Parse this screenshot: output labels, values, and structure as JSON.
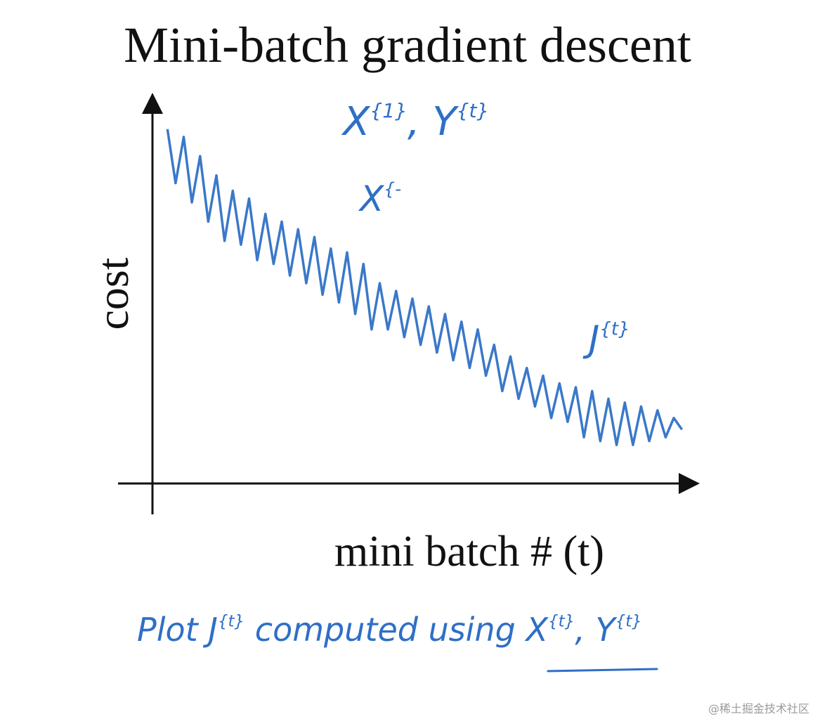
{
  "chart_data": {
    "type": "line",
    "title": "Mini-batch gradient descent",
    "y_label": "cost",
    "x_label": "mini batch # (t)",
    "xlim": [
      0,
      100
    ],
    "ylim": [
      0,
      100
    ],
    "color": "#3a78c9",
    "x": [
      3,
      4.5,
      6,
      7.5,
      9,
      10.5,
      12,
      13.5,
      15,
      16.5,
      18,
      19.5,
      21,
      22.5,
      24,
      25.5,
      27,
      28.5,
      30,
      31.5,
      33,
      34.5,
      36,
      37.5,
      39,
      40.5,
      42,
      43.5,
      45,
      46.5,
      48,
      49.5,
      51,
      52.5,
      54,
      55.5,
      57,
      58.5,
      60,
      61.5,
      63,
      64.5,
      66,
      67.5,
      69,
      70.5,
      72,
      73.5,
      75,
      76.5,
      78,
      79.5,
      81,
      82.5,
      84,
      85.5,
      87,
      88.5,
      90,
      91.5,
      93,
      94.5,
      96,
      97.5
    ],
    "values": [
      92,
      78,
      90,
      73,
      85,
      68,
      80,
      63,
      76,
      62,
      74,
      58,
      70,
      57,
      68,
      54,
      66,
      52,
      64,
      49,
      61,
      47,
      60,
      44,
      57,
      40,
      52,
      40,
      50,
      38,
      48,
      36,
      46,
      34,
      44,
      32,
      42,
      30,
      40,
      28,
      36,
      24,
      33,
      22,
      30,
      20,
      28,
      17,
      26,
      16,
      25,
      12,
      24,
      11,
      22,
      10,
      21,
      10,
      20,
      11,
      19,
      12,
      17,
      14
    ],
    "annotations": [
      {
        "parts": [
          {
            "text": "X"
          },
          {
            "text": "{1}",
            "sup": true
          },
          {
            "text": ", Y"
          },
          {
            "text": "{t}",
            "sup": true
          }
        ]
      },
      {
        "parts": [
          {
            "text": "X"
          },
          {
            "text": "{-",
            "sup": true
          }
        ]
      },
      {
        "parts": [
          {
            "text": "J"
          },
          {
            "text": "{t}",
            "sup": true
          }
        ]
      },
      {
        "parts": [
          {
            "text": "Plot  J"
          },
          {
            "text": "{t}",
            "sup": true
          },
          {
            "text": "  computed using  X"
          },
          {
            "text": "{t}",
            "sup": true
          },
          {
            "text": ", Y"
          },
          {
            "text": "{t}",
            "sup": true
          }
        ]
      }
    ],
    "watermark": "@稀土掘金技术社区"
  }
}
